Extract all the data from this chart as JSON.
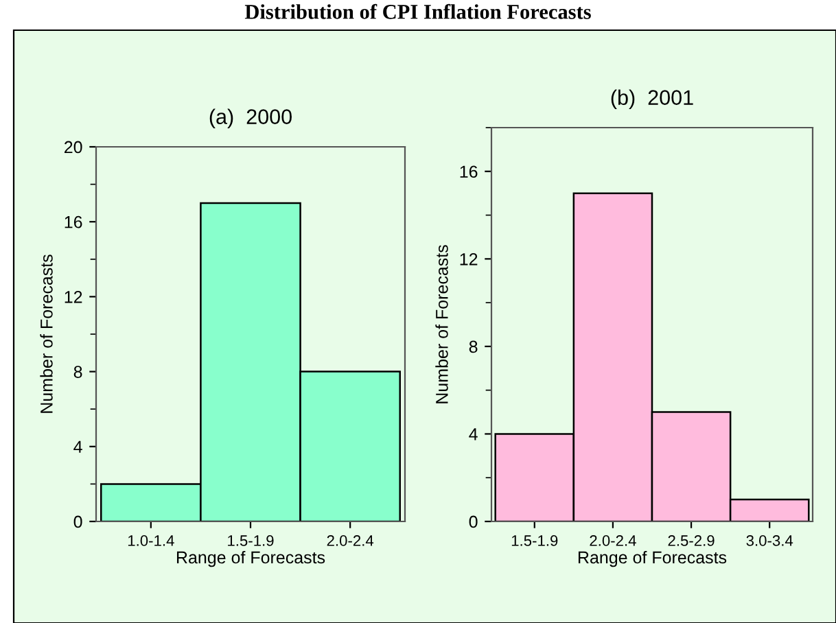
{
  "chart_data": [
    {
      "type": "bar",
      "title": "Distribution of CPI Inflation Forecasts",
      "subtitle": "(a)  2000",
      "xlabel": "Range of Forecasts",
      "ylabel": "Number of Forecasts",
      "categories": [
        "1.0-1.4",
        "1.5-1.9",
        "2.0-2.4"
      ],
      "values": [
        2,
        17,
        8
      ],
      "color": "#88ffcc",
      "ylim": [
        0,
        20
      ],
      "yticks": [
        0,
        4,
        8,
        12,
        16,
        20
      ],
      "grid": false
    },
    {
      "type": "bar",
      "title": "(b)  2001",
      "xlabel": "Range of Forecasts",
      "ylabel": "Number of Forecasts",
      "categories": [
        "1.5-1.9",
        "2.0-2.4",
        "2.5-2.9",
        "3.0-3.4"
      ],
      "values": [
        4,
        15,
        5,
        1
      ],
      "color": "#ffbbdd",
      "ylim": [
        0,
        18
      ],
      "yticks": [
        0,
        4,
        8,
        12,
        16
      ],
      "grid": false
    }
  ]
}
